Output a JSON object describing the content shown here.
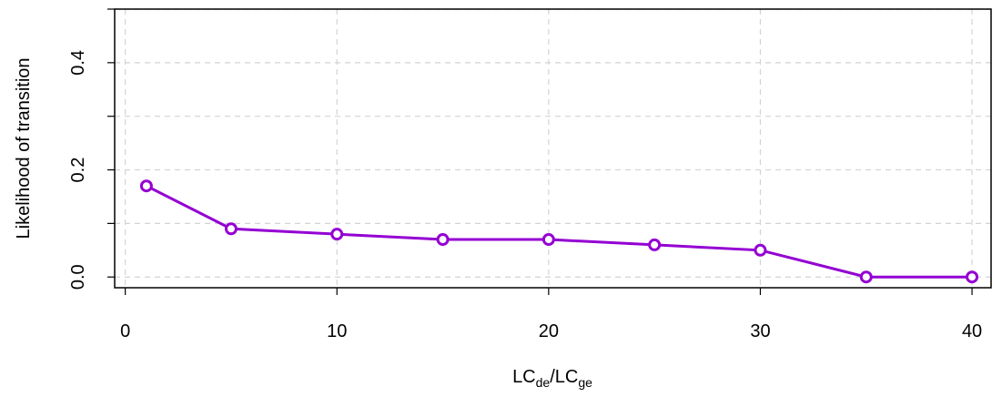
{
  "chart_data": {
    "type": "line",
    "xlabel": {
      "main": "LC",
      "sub1": "de",
      "sep": "/LC",
      "sub2": "ge"
    },
    "ylabel": "Likelihood of transition",
    "xlim": [
      -0.5,
      40.9
    ],
    "ylim": [
      -0.02,
      0.5
    ],
    "x_ticks": [
      0,
      10,
      20,
      30,
      40
    ],
    "x_tick_labels": [
      "0",
      "10",
      "20",
      "30",
      "40"
    ],
    "y_ticks": [
      0.0,
      0.2,
      0.4
    ],
    "y_tick_labels": [
      "0.0",
      "0.2",
      "0.4"
    ],
    "y_minor_ticks": [
      0.1,
      0.3,
      0.5
    ],
    "grid": true,
    "series": [
      {
        "color": "#9400D3",
        "x": [
          1,
          5,
          10,
          15,
          20,
          25,
          30,
          35,
          40
        ],
        "y": [
          0.17,
          0.09,
          0.08,
          0.07,
          0.07,
          0.06,
          0.05,
          0.0,
          0.0
        ]
      }
    ],
    "colors": {
      "series": "#9400D3",
      "grid": "#d3d3d3",
      "axis": "#000000"
    }
  }
}
